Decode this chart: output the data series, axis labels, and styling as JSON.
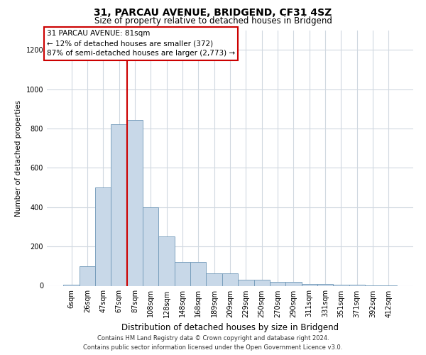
{
  "title_line1": "31, PARCAU AVENUE, BRIDGEND, CF31 4SZ",
  "title_line2": "Size of property relative to detached houses in Bridgend",
  "xlabel": "Distribution of detached houses by size in Bridgend",
  "ylabel": "Number of detached properties",
  "categories": [
    "6sqm",
    "26sqm",
    "47sqm",
    "67sqm",
    "87sqm",
    "108sqm",
    "128sqm",
    "148sqm",
    "168sqm",
    "189sqm",
    "209sqm",
    "229sqm",
    "250sqm",
    "270sqm",
    "290sqm",
    "311sqm",
    "331sqm",
    "351sqm",
    "371sqm",
    "392sqm",
    "412sqm"
  ],
  "values": [
    5,
    100,
    500,
    820,
    845,
    400,
    250,
    120,
    120,
    65,
    65,
    30,
    30,
    20,
    20,
    10,
    10,
    5,
    5,
    2,
    2
  ],
  "bar_color": "#c8d8e8",
  "bar_edge_color": "#7098b8",
  "vline_x": 3.5,
  "vline_color": "#cc0000",
  "annotation_text": "31 PARCAU AVENUE: 81sqm\n← 12% of detached houses are smaller (372)\n87% of semi-detached houses are larger (2,773) →",
  "annotation_box_color": "#ffffff",
  "annotation_box_edge": "#cc0000",
  "ylim": [
    0,
    1300
  ],
  "yticks": [
    0,
    200,
    400,
    600,
    800,
    1000,
    1200
  ],
  "footer_line1": "Contains HM Land Registry data © Crown copyright and database right 2024.",
  "footer_line2": "Contains public sector information licensed under the Open Government Licence v3.0.",
  "bg_color": "#ffffff",
  "grid_color": "#d0d8e0",
  "title1_fontsize": 10,
  "title2_fontsize": 8.5,
  "xlabel_fontsize": 8.5,
  "ylabel_fontsize": 7.5,
  "tick_fontsize": 7,
  "footer_fontsize": 6,
  "annot_fontsize": 7.5
}
